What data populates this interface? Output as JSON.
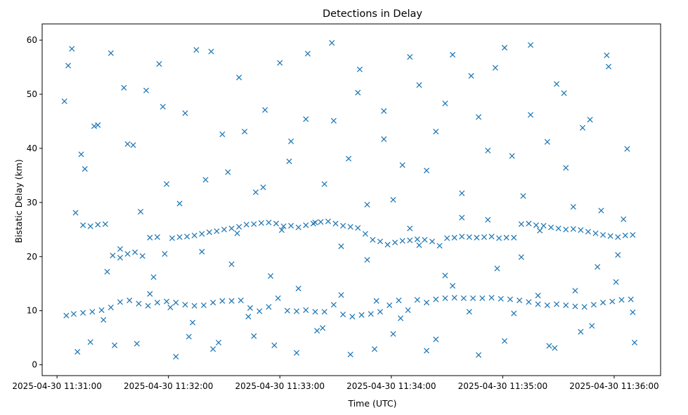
{
  "chart_data": {
    "type": "scatter",
    "title": "Detections in Delay",
    "xlabel": "Time (UTC)",
    "ylabel": "Bistatic Delay (km)",
    "marker": "x",
    "color": "#1f77b4",
    "grid": false,
    "legend": "none",
    "xlim": [
      "2025-04-30 11:30:52",
      "2025-04-30 11:36:25"
    ],
    "ylim": [
      -2,
      63
    ],
    "x_ticks": [
      "2025-04-30 11:31:00",
      "2025-04-30 11:32:00",
      "2025-04-30 11:33:00",
      "2025-04-30 11:34:00",
      "2025-04-30 11:35:00",
      "2025-04-30 11:36:00"
    ],
    "y_ticks": [
      "0",
      "10",
      "20",
      "30",
      "40",
      "50",
      "60"
    ],
    "x_range_time": [
      "2025-04-30 11:31:05",
      "2025-04-30 11:36:12"
    ],
    "series": [
      {
        "x": [
          "11:31:05",
          "11:31:09",
          "11:31:14",
          "11:31:19",
          "11:31:24",
          "11:31:29",
          "11:31:34",
          "11:31:39",
          "11:31:44",
          "11:31:49",
          "11:31:54",
          "11:31:59",
          "11:32:04",
          "11:32:09",
          "11:32:14",
          "11:32:19",
          "11:32:24",
          "11:32:29",
          "11:32:34",
          "11:32:39",
          "11:32:44",
          "11:32:49",
          "11:32:54",
          "11:32:59",
          "11:33:04",
          "11:33:09",
          "11:33:14",
          "11:33:19",
          "11:33:24",
          "11:33:29",
          "11:33:34",
          "11:33:39",
          "11:33:44",
          "11:33:49",
          "11:33:54",
          "11:33:59",
          "11:34:04",
          "11:34:09",
          "11:34:14",
          "11:34:19",
          "11:34:24",
          "11:34:29",
          "11:34:34",
          "11:34:39",
          "11:34:44",
          "11:34:49",
          "11:34:54",
          "11:34:59",
          "11:35:04",
          "11:35:09",
          "11:35:14",
          "11:35:19",
          "11:35:24",
          "11:35:29",
          "11:35:34",
          "11:35:39",
          "11:35:44",
          "11:35:49",
          "11:35:54",
          "11:35:59",
          "11:36:04",
          "11:36:09"
        ],
        "y": [
          9.1,
          9.4,
          9.6,
          9.8,
          10.1,
          10.6,
          11.6,
          11.9,
          11.3,
          10.9,
          11.5,
          11.7,
          11.5,
          11.1,
          10.9,
          11.0,
          11.5,
          11.8,
          11.8,
          11.9,
          10.5,
          9.9,
          10.7,
          12.3,
          10.0,
          9.9,
          10.1,
          9.8,
          9.8,
          11.1,
          9.3,
          8.9,
          9.2,
          9.4,
          9.8,
          11.0,
          11.9,
          10.1,
          12.0,
          11.5,
          12.1,
          12.3,
          12.4,
          12.3,
          12.3,
          12.3,
          12.4,
          12.2,
          12.1,
          11.9,
          11.6,
          11.2,
          11.0,
          11.2,
          11.0,
          10.8,
          10.7,
          11.1,
          11.5,
          11.7,
          12.0,
          12.1
        ]
      },
      {
        "x": [
          "11:31:10",
          "11:31:14",
          "11:31:18",
          "11:31:22",
          "11:31:26",
          "11:31:30",
          "11:31:34",
          "11:31:38",
          "11:31:42",
          "11:31:46",
          "11:31:50",
          "11:31:54",
          "11:31:58",
          "11:32:02",
          "11:32:06",
          "11:32:10",
          "11:32:14",
          "11:32:18",
          "11:32:22",
          "11:32:26",
          "11:32:30",
          "11:32:34",
          "11:32:38",
          "11:32:42",
          "11:32:46",
          "11:32:50",
          "11:32:54",
          "11:32:58",
          "11:33:02",
          "11:33:06",
          "11:33:10",
          "11:33:14",
          "11:33:18",
          "11:33:22",
          "11:33:26",
          "11:33:30",
          "11:33:34",
          "11:33:38",
          "11:33:42",
          "11:33:46",
          "11:33:50",
          "11:33:54",
          "11:33:58",
          "11:34:02",
          "11:34:06",
          "11:34:10",
          "11:34:14",
          "11:34:18",
          "11:34:22",
          "11:34:26",
          "11:34:30",
          "11:34:34",
          "11:34:38",
          "11:34:42",
          "11:34:46",
          "11:34:50",
          "11:34:54",
          "11:34:58",
          "11:35:02",
          "11:35:06",
          "11:35:10",
          "11:35:14",
          "11:35:18",
          "11:35:22",
          "11:35:26",
          "11:35:30",
          "11:35:34",
          "11:35:38",
          "11:35:42",
          "11:35:46",
          "11:35:50",
          "11:35:54",
          "11:35:58",
          "11:36:02",
          "11:36:06",
          "11:36:10"
        ],
        "y": [
          28.1,
          25.8,
          25.6,
          25.9,
          26.0,
          20.2,
          19.8,
          20.5,
          20.8,
          20.1,
          23.5,
          23.6,
          20.5,
          23.4,
          23.6,
          23.7,
          23.9,
          24.2,
          24.5,
          24.7,
          25.0,
          25.2,
          25.5,
          25.9,
          26.0,
          26.2,
          26.3,
          26.1,
          25.6,
          25.7,
          25.4,
          25.8,
          26.1,
          26.4,
          26.5,
          26.1,
          25.7,
          25.5,
          25.3,
          24.2,
          23.1,
          22.8,
          22.2,
          22.6,
          22.9,
          23.0,
          23.2,
          23.1,
          22.8,
          22.0,
          23.4,
          23.5,
          23.7,
          23.6,
          23.5,
          23.6,
          23.7,
          23.4,
          23.5,
          23.5,
          26.0,
          26.1,
          25.8,
          25.7,
          25.4,
          25.2,
          25.0,
          25.1,
          24.9,
          24.6,
          24.3,
          24.0,
          23.8,
          23.6,
          23.9,
          24.0
        ]
      },
      {
        "x": [
          "11:31:04",
          "11:31:08",
          "11:31:13",
          "11:31:18",
          "11:31:22",
          "11:31:27",
          "11:31:31",
          "11:31:36",
          "11:31:41",
          "11:31:45",
          "11:31:50",
          "11:31:55",
          "11:31:59",
          "11:32:04",
          "11:32:09",
          "11:32:13",
          "11:32:18",
          "11:32:23",
          "11:32:27",
          "11:32:32",
          "11:32:37",
          "11:32:41",
          "11:32:46",
          "11:32:51",
          "11:32:55",
          "11:33:00",
          "11:33:05",
          "11:33:09",
          "11:33:14",
          "11:33:19",
          "11:33:23",
          "11:33:28",
          "11:33:33",
          "11:33:37",
          "11:33:42",
          "11:33:47",
          "11:33:51",
          "11:33:56",
          "11:34:01",
          "11:34:05",
          "11:34:10",
          "11:34:15",
          "11:34:19",
          "11:34:24",
          "11:34:29",
          "11:34:33",
          "11:34:38",
          "11:34:43",
          "11:34:47",
          "11:34:52",
          "11:34:57",
          "11:35:01",
          "11:35:06",
          "11:35:11",
          "11:35:15",
          "11:35:20",
          "11:35:25",
          "11:35:29",
          "11:35:34",
          "11:35:39",
          "11:35:43",
          "11:35:48",
          "11:35:53",
          "11:35:57",
          "11:36:02",
          "11:36:07",
          "11:36:11"
        ],
        "y": [
          48.7,
          58.4,
          38.9,
          4.2,
          44.3,
          17.2,
          3.6,
          51.2,
          40.6,
          28.3,
          13.1,
          55.6,
          33.4,
          1.5,
          46.5,
          7.8,
          20.9,
          57.9,
          4.1,
          35.6,
          24.3,
          43.1,
          5.3,
          32.8,
          16.4,
          55.8,
          37.6,
          2.2,
          45.4,
          26.3,
          6.8,
          59.5,
          12.9,
          38.1,
          50.3,
          19.4,
          2.9,
          41.7,
          30.5,
          8.6,
          56.9,
          22.1,
          35.9,
          4.7,
          48.3,
          14.6,
          27.2,
          53.4,
          1.8,
          39.6,
          17.8,
          58.6,
          9.5,
          31.2,
          46.2,
          24.8,
          3.5,
          51.9,
          36.4,
          13.7,
          43.8,
          7.2,
          28.5,
          55.1,
          20.3,
          39.9,
          4.1
        ]
      },
      {
        "x": [
          "11:31:06",
          "11:31:11",
          "11:31:15",
          "11:31:20",
          "11:31:25",
          "11:31:29",
          "11:31:34",
          "11:31:38",
          "11:31:43",
          "11:31:48",
          "11:31:52",
          "11:31:57",
          "11:32:01",
          "11:32:06",
          "11:32:11",
          "11:32:15",
          "11:32:20",
          "11:32:24",
          "11:32:29",
          "11:32:34",
          "11:32:38",
          "11:32:43",
          "11:32:47",
          "11:32:52",
          "11:32:57",
          "11:33:01",
          "11:33:06",
          "11:33:10",
          "11:33:15",
          "11:33:20",
          "11:33:24",
          "11:33:29",
          "11:33:33",
          "11:33:38",
          "11:33:43",
          "11:33:47",
          "11:33:52",
          "11:33:56",
          "11:34:01",
          "11:34:06",
          "11:34:10",
          "11:34:15",
          "11:34:19",
          "11:34:24",
          "11:34:29",
          "11:34:33",
          "11:34:38",
          "11:34:42",
          "11:34:47",
          "11:34:52",
          "11:34:56",
          "11:35:01",
          "11:35:05",
          "11:35:10",
          "11:35:15",
          "11:35:19",
          "11:35:24",
          "11:35:28",
          "11:35:33",
          "11:35:38",
          "11:35:42",
          "11:35:47",
          "11:35:51",
          "11:35:56",
          "11:36:01",
          "11:36:05",
          "11:36:10"
        ],
        "y": [
          55.3,
          2.4,
          36.2,
          44.1,
          8.3,
          57.6,
          21.4,
          40.8,
          3.9,
          50.7,
          16.2,
          47.7,
          10.6,
          29.8,
          5.2,
          58.2,
          34.2,
          2.9,
          42.6,
          18.6,
          53.1,
          8.9,
          31.9,
          47.1,
          3.6,
          24.9,
          41.3,
          14.1,
          57.5,
          6.3,
          33.4,
          45.1,
          21.9,
          1.9,
          54.6,
          29.6,
          11.8,
          46.9,
          5.7,
          36.9,
          25.2,
          51.7,
          2.6,
          43.1,
          16.5,
          57.3,
          31.7,
          9.8,
          45.8,
          26.8,
          54.9,
          4.4,
          38.6,
          19.9,
          59.1,
          12.8,
          41.2,
          3.1,
          50.2,
          29.2,
          6.1,
          45.3,
          18.1,
          57.2,
          15.3,
          26.9,
          9.7
        ]
      }
    ]
  }
}
